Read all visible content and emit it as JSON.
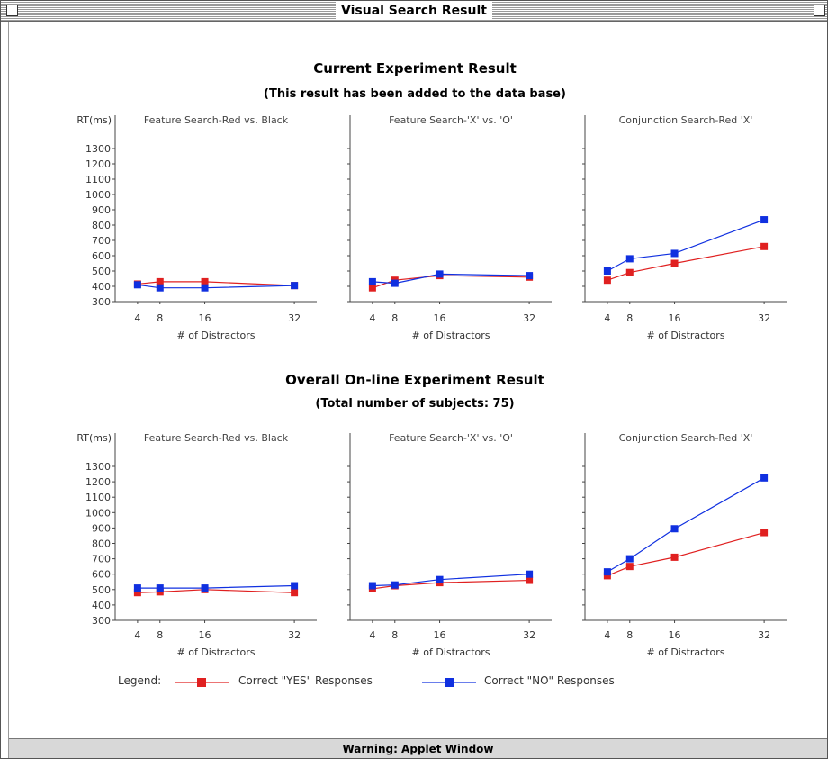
{
  "window": {
    "title": "Visual Search Result",
    "status": "Warning: Applet Window"
  },
  "colors": {
    "yes": "#e02020",
    "no": "#1030e0",
    "axis": "#444444"
  },
  "sections": [
    {
      "title": "Current Experiment Result",
      "subtitle": "(This result has been added to the data base)"
    },
    {
      "title": "Overall On-line Experiment Result",
      "subtitle": "(Total number of subjects: 75)"
    }
  ],
  "legend": {
    "label": "Legend:",
    "yes": "Correct \"YES\" Responses",
    "no": "Correct \"NO\" Responses"
  },
  "chart_data": [
    {
      "type": "line",
      "panel": "current",
      "title": "Feature Search-Red vs. Black",
      "ylabel": "RT(ms)",
      "xlabel": "# of Distractors",
      "x": [
        4,
        8,
        16,
        32
      ],
      "xlim": [
        0,
        36
      ],
      "ylim": [
        300,
        1300
      ],
      "yticks": [
        300,
        400,
        500,
        600,
        700,
        800,
        900,
        1000,
        1100,
        1200,
        1300
      ],
      "series": [
        {
          "name": "Correct \"YES\" Responses",
          "values": [
            415,
            430,
            430,
            405
          ]
        },
        {
          "name": "Correct \"NO\" Responses",
          "values": [
            410,
            390,
            390,
            405
          ]
        }
      ]
    },
    {
      "type": "line",
      "panel": "current",
      "title": "Feature Search-'X' vs. 'O'",
      "ylabel": "",
      "xlabel": "# of Distractors",
      "x": [
        4,
        8,
        16,
        32
      ],
      "xlim": [
        0,
        36
      ],
      "ylim": [
        300,
        1300
      ],
      "series": [
        {
          "name": "Correct \"YES\" Responses",
          "values": [
            390,
            440,
            470,
            460
          ]
        },
        {
          "name": "Correct \"NO\" Responses",
          "values": [
            430,
            420,
            480,
            470
          ]
        }
      ]
    },
    {
      "type": "line",
      "panel": "current",
      "title": "Conjunction Search-Red 'X'",
      "ylabel": "",
      "xlabel": "# of Distractors",
      "x": [
        4,
        8,
        16,
        32
      ],
      "xlim": [
        0,
        36
      ],
      "ylim": [
        300,
        1300
      ],
      "series": [
        {
          "name": "Correct \"YES\" Responses",
          "values": [
            440,
            490,
            550,
            660
          ]
        },
        {
          "name": "Correct \"NO\" Responses",
          "values": [
            500,
            580,
            615,
            835
          ]
        }
      ]
    },
    {
      "type": "line",
      "panel": "overall",
      "title": "Feature Search-Red vs. Black",
      "ylabel": "RT(ms)",
      "xlabel": "# of Distractors",
      "x": [
        4,
        8,
        16,
        32
      ],
      "xlim": [
        0,
        36
      ],
      "ylim": [
        300,
        1300
      ],
      "yticks": [
        300,
        400,
        500,
        600,
        700,
        800,
        900,
        1000,
        1100,
        1200,
        1300
      ],
      "series": [
        {
          "name": "Correct \"YES\" Responses",
          "values": [
            480,
            485,
            500,
            480
          ]
        },
        {
          "name": "Correct \"NO\" Responses",
          "values": [
            510,
            510,
            510,
            525
          ]
        }
      ]
    },
    {
      "type": "line",
      "panel": "overall",
      "title": "Feature Search-'X' vs. 'O'",
      "ylabel": "",
      "xlabel": "# of Distractors",
      "x": [
        4,
        8,
        16,
        32
      ],
      "xlim": [
        0,
        36
      ],
      "ylim": [
        300,
        1300
      ],
      "series": [
        {
          "name": "Correct \"YES\" Responses",
          "values": [
            505,
            525,
            545,
            560
          ]
        },
        {
          "name": "Correct \"NO\" Responses",
          "values": [
            525,
            530,
            565,
            600
          ]
        }
      ]
    },
    {
      "type": "line",
      "panel": "overall",
      "title": "Conjunction Search-Red 'X'",
      "ylabel": "",
      "xlabel": "# of Distractors",
      "x": [
        4,
        8,
        16,
        32
      ],
      "xlim": [
        0,
        36
      ],
      "ylim": [
        300,
        1300
      ],
      "series": [
        {
          "name": "Correct \"YES\" Responses",
          "values": [
            590,
            650,
            710,
            870
          ]
        },
        {
          "name": "Correct \"NO\" Responses",
          "values": [
            615,
            700,
            895,
            1225
          ]
        }
      ]
    }
  ]
}
